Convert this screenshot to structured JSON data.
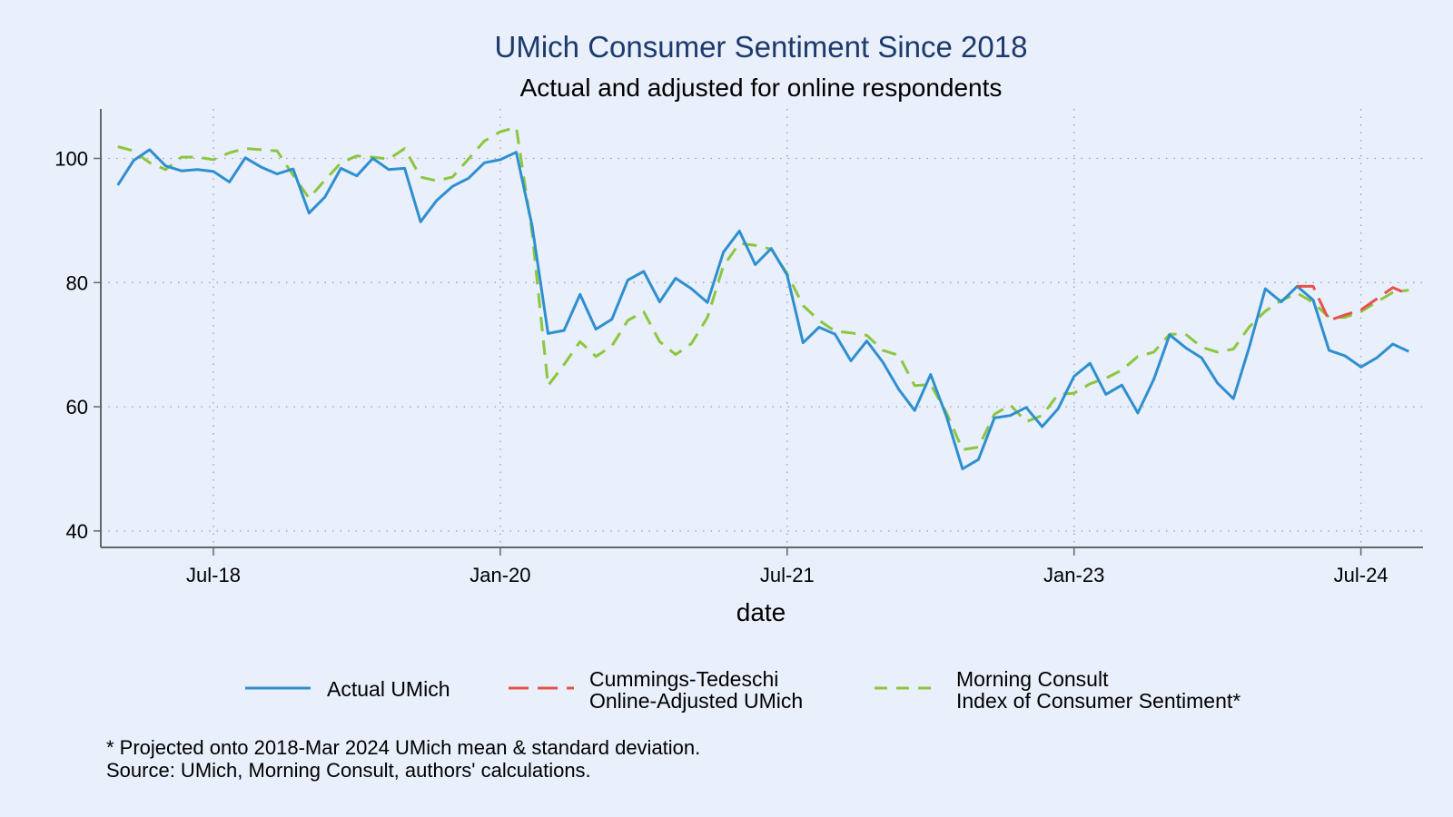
{
  "chart_data": {
    "type": "line",
    "title": "UMich Consumer Sentiment Since 2018",
    "subtitle": "Actual and adjusted for online respondents",
    "xlabel": "date",
    "ylabel": "",
    "x_start": "2018-01",
    "x_frequency": "monthly",
    "xlim": [
      "2017-10",
      "2024-12"
    ],
    "ylim": [
      37,
      107
    ],
    "grid": true,
    "x_ticks": [
      {
        "label": "Jul-18",
        "month_index": 6
      },
      {
        "label": "Jan-20",
        "month_index": 24
      },
      {
        "label": "Jul-21",
        "month_index": 42
      },
      {
        "label": "Jan-23",
        "month_index": 60
      },
      {
        "label": "Jul-24",
        "month_index": 78
      }
    ],
    "y_ticks": [
      40,
      60,
      80,
      100
    ],
    "legend_position": "bottom",
    "series": [
      {
        "name": "Actual UMich",
        "color": "#2E8FCF",
        "style": "solid",
        "start_index": 0,
        "values": [
          95.7,
          99.7,
          101.4,
          98.8,
          98.0,
          98.2,
          97.9,
          96.2,
          100.1,
          98.6,
          97.5,
          98.3,
          91.2,
          93.8,
          98.4,
          97.2,
          100.0,
          98.2,
          98.4,
          89.8,
          93.2,
          95.5,
          96.8,
          99.3,
          99.8,
          101.0,
          89.1,
          71.8,
          72.3,
          78.1,
          72.5,
          74.1,
          80.4,
          81.8,
          76.9,
          80.7,
          79.0,
          76.8,
          84.9,
          88.3,
          82.9,
          85.5,
          81.2,
          70.3,
          72.8,
          71.7,
          67.4,
          70.6,
          67.2,
          62.8,
          59.4,
          65.2,
          58.4,
          50.0,
          51.5,
          58.2,
          58.6,
          59.9,
          56.8,
          59.7,
          64.9,
          67.0,
          62.0,
          63.5,
          59.0,
          64.4,
          71.6,
          69.5,
          67.9,
          63.8,
          61.3,
          69.7,
          79.0,
          76.9,
          79.4,
          77.2,
          69.1,
          68.2,
          66.4,
          67.9,
          70.1,
          68.9
        ]
      },
      {
        "name": "Cummings-Tedeschi Online-Adjusted UMich",
        "legend_lines": [
          "Cummings-Tedeschi",
          "Online-Adjusted UMich"
        ],
        "color": "#E8504A",
        "style": "dashed",
        "start_index": 74,
        "values": [
          79.4,
          79.4,
          73.9,
          74.8,
          75.6,
          77.4,
          79.2,
          78.1
        ]
      },
      {
        "name": "Morning Consult Index of Consumer Sentiment*",
        "legend_lines": [
          "Morning Consult",
          "Index of Consumer Sentiment*"
        ],
        "color": "#8CC63F",
        "style": "dashed",
        "start_index": 0,
        "values": [
          101.9,
          101.2,
          99.3,
          98.2,
          100.2,
          100.2,
          99.8,
          100.9,
          101.6,
          101.4,
          101.2,
          97.3,
          93.6,
          96.5,
          99.3,
          100.4,
          100.2,
          99.9,
          101.6,
          97.0,
          96.4,
          97.0,
          99.9,
          102.8,
          104.3,
          105.0,
          88.0,
          63.4,
          66.8,
          70.5,
          68.1,
          69.8,
          73.9,
          75.3,
          70.5,
          68.4,
          70.2,
          74.4,
          82.7,
          86.3,
          86.0,
          85.4,
          81.4,
          76.3,
          73.9,
          72.2,
          71.9,
          71.5,
          69.1,
          68.3,
          63.4,
          63.6,
          59.0,
          53.1,
          53.5,
          58.8,
          60.3,
          57.6,
          58.6,
          62.0,
          62.2,
          63.7,
          64.6,
          65.9,
          68.1,
          68.8,
          71.7,
          71.7,
          69.6,
          68.8,
          69.3,
          72.9,
          75.4,
          77.1,
          78.3,
          76.8,
          74.4,
          74.4,
          75.3,
          76.9,
          78.4,
          78.8
        ]
      }
    ],
    "notes": [
      "* Projected onto 2018-Mar 2024 UMich mean & standard deviation.",
      "Source: UMich, Morning Consult, authors' calculations."
    ]
  }
}
